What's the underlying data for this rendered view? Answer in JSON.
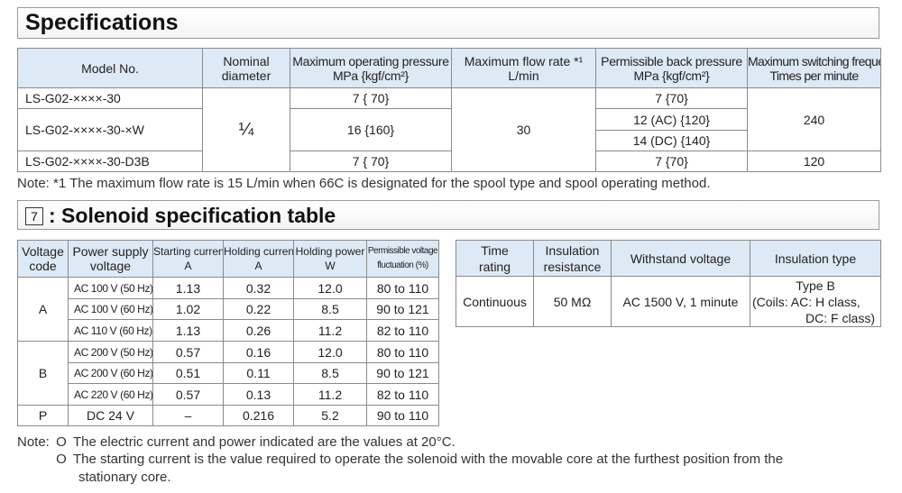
{
  "section1": {
    "title": "Specifications"
  },
  "spec_table": {
    "headers": {
      "model": "Model No.",
      "diameter_1": "Nominal",
      "diameter_2": "diameter",
      "pressure_1": "Maximum operating pressure",
      "pressure_2": "MPa {kgf/cm²}",
      "flow_1": "Maximum flow rate *¹",
      "flow_2": "L/min",
      "back_1": "Permissible back pressure",
      "back_2": "MPa {kgf/cm²}",
      "freq_1": "Maximum switching frequency",
      "freq_2": "Times per minute"
    },
    "rows": [
      {
        "model": "LS-G02-××××-30",
        "pressure": "7 { 70}",
        "back": "7 {70}"
      },
      {
        "model": "LS-G02-××××-30-×W",
        "pressure": "16 {160}",
        "back_ac": "12 (AC) {120}",
        "back_dc": "14 (DC) {140}"
      },
      {
        "model": "LS-G02-××××-30-D3B",
        "pressure": "7 { 70}",
        "back": "7 {70}"
      }
    ],
    "diameter": "¼",
    "flow": "30",
    "freq_1": "240",
    "freq_2": "120"
  },
  "note1": "Note: *1 The maximum flow rate is 15 L/min when 66C is designated for the spool type and spool operating method.",
  "section2": {
    "number": "7",
    "title": ": Solenoid specification table"
  },
  "solenoid_table": {
    "headers": {
      "code_1": "Voltage",
      "code_2": "code",
      "supply_1": "Power supply",
      "supply_2": "voltage",
      "start_1": "Starting current",
      "start_2": "A",
      "hold_1": "Holding current",
      "hold_2": "A",
      "power_1": "Holding power",
      "power_2": "W",
      "fluct_1": "Permissible voltage",
      "fluct_2": "fluctuation (%)"
    },
    "groups": [
      {
        "code": "A",
        "rows": [
          {
            "supply": "AC 100 V (50 Hz)",
            "start": "1.13",
            "hold": "0.32",
            "power": "12.0",
            "fluct": "80 to 110"
          },
          {
            "supply": "AC 100 V (60 Hz)",
            "start": "1.02",
            "hold": "0.22",
            "power": "8.5",
            "fluct": "90 to 121"
          },
          {
            "supply": "AC 110 V (60 Hz)",
            "start": "1.13",
            "hold": "0.26",
            "power": "11.2",
            "fluct": "82 to 110"
          }
        ]
      },
      {
        "code": "B",
        "rows": [
          {
            "supply": "AC 200 V (50 Hz)",
            "start": "0.57",
            "hold": "0.16",
            "power": "12.0",
            "fluct": "80 to 110"
          },
          {
            "supply": "AC 200 V (60 Hz)",
            "start": "0.51",
            "hold": "0.11",
            "power": "8.5",
            "fluct": "90 to 121"
          },
          {
            "supply": "AC 220 V (60 Hz)",
            "start": "0.57",
            "hold": "0.13",
            "power": "11.2",
            "fluct": "82 to 110"
          }
        ]
      },
      {
        "code": "P",
        "rows": [
          {
            "supply": "DC 24 V",
            "start": "–",
            "hold": "0.216",
            "power": "5.2",
            "fluct": "90 to 110"
          }
        ]
      }
    ]
  },
  "insulation_table": {
    "headers": {
      "time_1": "Time",
      "time_2": "rating",
      "ins_1": "Insulation",
      "ins_2": "resistance",
      "withstand": "Withstand voltage",
      "type": "Insulation type"
    },
    "row": {
      "time": "Continuous",
      "resistance": "50 MΩ",
      "withstand": "AC 1500 V, 1 minute",
      "type_1": "Type B",
      "type_2": "(Coils: AC: H class,",
      "type_3": "DC: F class)"
    }
  },
  "notes2": {
    "prefix": "Note:",
    "bullet": "O",
    "line1": "The electric current and power indicated are the values at 20°C.",
    "line2a": "The starting current is the value required to operate the solenoid with the movable core at the furthest position from the",
    "line2b": "stationary core."
  }
}
